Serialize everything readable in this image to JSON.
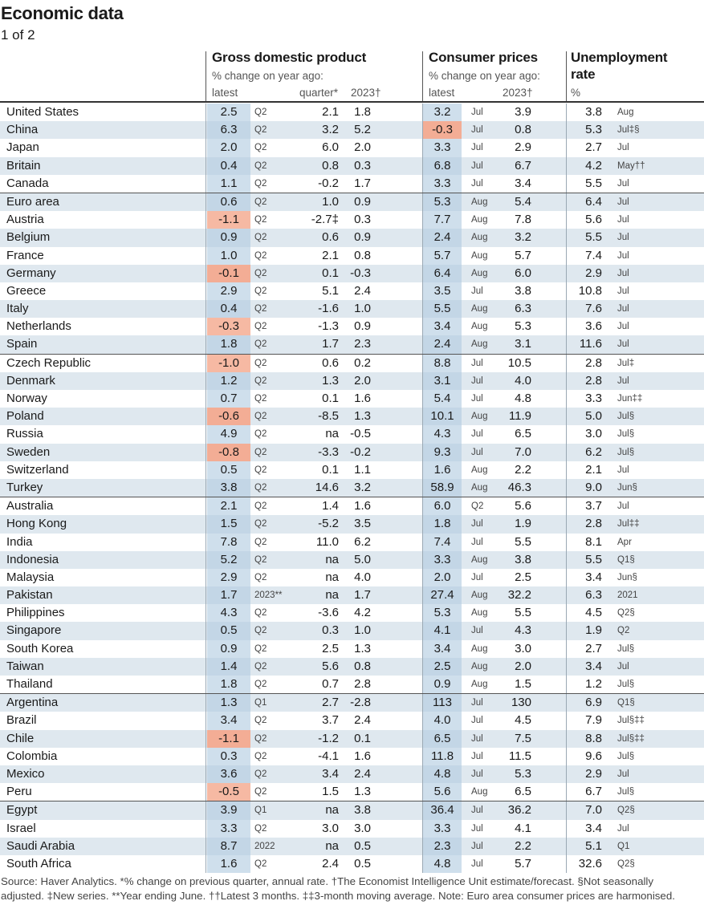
{
  "title": "Economic data",
  "subtitle": "1 of 2",
  "headers": {
    "gdp": "Gross domestic product",
    "gdp_sub": "% change on year ago:",
    "gdp_latest": "latest",
    "gdp_quarter": "quarter*",
    "gdp_2023": "2023†",
    "cpi": "Consumer prices",
    "cpi_sub": "% change on year ago:",
    "cpi_latest": "latest",
    "cpi_2023": "2023†",
    "unemp_line1": "Unemployment",
    "unemp_line2": "rate",
    "unemp_pct": "%"
  },
  "rows": [
    {
      "country": "United States",
      "gdp": "2.5",
      "gdp_period": "Q2",
      "quarter": "2.1",
      "gdp_2023": "1.8",
      "cpi": "3.2",
      "cpi_period": "Jul",
      "cpi_2023": "3.9",
      "unemp": "3.8",
      "unemp_period": "Aug"
    },
    {
      "country": "China",
      "gdp": "6.3",
      "gdp_period": "Q2",
      "quarter": "3.2",
      "gdp_2023": "5.2",
      "cpi": "-0.3",
      "cpi_period": "Jul",
      "cpi_2023": "0.8",
      "unemp": "5.3",
      "unemp_period": "Jul‡§"
    },
    {
      "country": "Japan",
      "gdp": "2.0",
      "gdp_period": "Q2",
      "quarter": "6.0",
      "gdp_2023": "2.0",
      "cpi": "3.3",
      "cpi_period": "Jul",
      "cpi_2023": "2.9",
      "unemp": "2.7",
      "unemp_period": "Jul"
    },
    {
      "country": "Britain",
      "gdp": "0.4",
      "gdp_period": "Q2",
      "quarter": "0.8",
      "gdp_2023": "0.3",
      "cpi": "6.8",
      "cpi_period": "Jul",
      "cpi_2023": "6.7",
      "unemp": "4.2",
      "unemp_period": "May††"
    },
    {
      "country": "Canada",
      "gdp": "1.1",
      "gdp_period": "Q2",
      "quarter": "-0.2",
      "gdp_2023": "1.7",
      "cpi": "3.3",
      "cpi_period": "Jul",
      "cpi_2023": "3.4",
      "unemp": "5.5",
      "unemp_period": "Jul"
    },
    {
      "country": "Euro area",
      "gdp": "0.6",
      "gdp_period": "Q2",
      "quarter": "1.0",
      "gdp_2023": "0.9",
      "cpi": "5.3",
      "cpi_period": "Aug",
      "cpi_2023": "5.4",
      "unemp": "6.4",
      "unemp_period": "Jul",
      "sep": true
    },
    {
      "country": "Austria",
      "gdp": "-1.1",
      "gdp_period": "Q2",
      "quarter": "-2.7‡",
      "gdp_2023": "0.3",
      "cpi": "7.7",
      "cpi_period": "Aug",
      "cpi_2023": "7.8",
      "unemp": "5.6",
      "unemp_period": "Jul"
    },
    {
      "country": "Belgium",
      "gdp": "0.9",
      "gdp_period": "Q2",
      "quarter": "0.6",
      "gdp_2023": "0.9",
      "cpi": "2.4",
      "cpi_period": "Aug",
      "cpi_2023": "3.2",
      "unemp": "5.5",
      "unemp_period": "Jul"
    },
    {
      "country": "France",
      "gdp": "1.0",
      "gdp_period": "Q2",
      "quarter": "2.1",
      "gdp_2023": "0.8",
      "cpi": "5.7",
      "cpi_period": "Aug",
      "cpi_2023": "5.7",
      "unemp": "7.4",
      "unemp_period": "Jul"
    },
    {
      "country": "Germany",
      "gdp": "-0.1",
      "gdp_period": "Q2",
      "quarter": "0.1",
      "gdp_2023": "-0.3",
      "cpi": "6.4",
      "cpi_period": "Aug",
      "cpi_2023": "6.0",
      "unemp": "2.9",
      "unemp_period": "Jul"
    },
    {
      "country": "Greece",
      "gdp": "2.9",
      "gdp_period": "Q2",
      "quarter": "5.1",
      "gdp_2023": "2.4",
      "cpi": "3.5",
      "cpi_period": "Jul",
      "cpi_2023": "3.8",
      "unemp": "10.8",
      "unemp_period": "Jul"
    },
    {
      "country": "Italy",
      "gdp": "0.4",
      "gdp_period": "Q2",
      "quarter": "-1.6",
      "gdp_2023": "1.0",
      "cpi": "5.5",
      "cpi_period": "Aug",
      "cpi_2023": "6.3",
      "unemp": "7.6",
      "unemp_period": "Jul"
    },
    {
      "country": "Netherlands",
      "gdp": "-0.3",
      "gdp_period": "Q2",
      "quarter": "-1.3",
      "gdp_2023": "0.9",
      "cpi": "3.4",
      "cpi_period": "Aug",
      "cpi_2023": "5.3",
      "unemp": "3.6",
      "unemp_period": "Jul"
    },
    {
      "country": "Spain",
      "gdp": "1.8",
      "gdp_period": "Q2",
      "quarter": "1.7",
      "gdp_2023": "2.3",
      "cpi": "2.4",
      "cpi_period": "Aug",
      "cpi_2023": "3.1",
      "unemp": "11.6",
      "unemp_period": "Jul"
    },
    {
      "country": "Czech Republic",
      "gdp": "-1.0",
      "gdp_period": "Q2",
      "quarter": "0.6",
      "gdp_2023": "0.2",
      "cpi": "8.8",
      "cpi_period": "Jul",
      "cpi_2023": "10.5",
      "unemp": "2.8",
      "unemp_period": "Jul‡",
      "sep": true
    },
    {
      "country": "Denmark",
      "gdp": "1.2",
      "gdp_period": "Q2",
      "quarter": "1.3",
      "gdp_2023": "2.0",
      "cpi": "3.1",
      "cpi_period": "Jul",
      "cpi_2023": "4.0",
      "unemp": "2.8",
      "unemp_period": "Jul"
    },
    {
      "country": "Norway",
      "gdp": "0.7",
      "gdp_period": "Q2",
      "quarter": "0.1",
      "gdp_2023": "1.6",
      "cpi": "5.4",
      "cpi_period": "Jul",
      "cpi_2023": "4.8",
      "unemp": "3.3",
      "unemp_period": "Jun‡‡"
    },
    {
      "country": "Poland",
      "gdp": "-0.6",
      "gdp_period": "Q2",
      "quarter": "-8.5",
      "gdp_2023": "1.3",
      "cpi": "10.1",
      "cpi_period": "Aug",
      "cpi_2023": "11.9",
      "unemp": "5.0",
      "unemp_period": "Jul§"
    },
    {
      "country": "Russia",
      "gdp": "4.9",
      "gdp_period": "Q2",
      "quarter": "na",
      "gdp_2023": "-0.5",
      "cpi": "4.3",
      "cpi_period": "Jul",
      "cpi_2023": "6.5",
      "unemp": "3.0",
      "unemp_period": "Jul§"
    },
    {
      "country": "Sweden",
      "gdp": "-0.8",
      "gdp_period": "Q2",
      "quarter": "-3.3",
      "gdp_2023": "-0.2",
      "cpi": "9.3",
      "cpi_period": "Jul",
      "cpi_2023": "7.0",
      "unemp": "6.2",
      "unemp_period": "Jul§"
    },
    {
      "country": "Switzerland",
      "gdp": "0.5",
      "gdp_period": "Q2",
      "quarter": "0.1",
      "gdp_2023": "1.1",
      "cpi": "1.6",
      "cpi_period": "Aug",
      "cpi_2023": "2.2",
      "unemp": "2.1",
      "unemp_period": "Jul"
    },
    {
      "country": "Turkey",
      "gdp": "3.8",
      "gdp_period": "Q2",
      "quarter": "14.6",
      "gdp_2023": "3.2",
      "cpi": "58.9",
      "cpi_period": "Aug",
      "cpi_2023": "46.3",
      "unemp": "9.0",
      "unemp_period": "Jun§"
    },
    {
      "country": "Australia",
      "gdp": "2.1",
      "gdp_period": "Q2",
      "quarter": "1.4",
      "gdp_2023": "1.6",
      "cpi": "6.0",
      "cpi_period": "Q2",
      "cpi_2023": "5.6",
      "unemp": "3.7",
      "unemp_period": "Jul",
      "sep": true
    },
    {
      "country": "Hong Kong",
      "gdp": "1.5",
      "gdp_period": "Q2",
      "quarter": "-5.2",
      "gdp_2023": "3.5",
      "cpi": "1.8",
      "cpi_period": "Jul",
      "cpi_2023": "1.9",
      "unemp": "2.8",
      "unemp_period": "Jul‡‡"
    },
    {
      "country": "India",
      "gdp": "7.8",
      "gdp_period": "Q2",
      "quarter": "11.0",
      "gdp_2023": "6.2",
      "cpi": "7.4",
      "cpi_period": "Jul",
      "cpi_2023": "5.5",
      "unemp": "8.1",
      "unemp_period": "Apr"
    },
    {
      "country": "Indonesia",
      "gdp": "5.2",
      "gdp_period": "Q2",
      "quarter": "na",
      "gdp_2023": "5.0",
      "cpi": "3.3",
      "cpi_period": "Aug",
      "cpi_2023": "3.8",
      "unemp": "5.5",
      "unemp_period": "Q1§"
    },
    {
      "country": "Malaysia",
      "gdp": "2.9",
      "gdp_period": "Q2",
      "quarter": "na",
      "gdp_2023": "4.0",
      "cpi": "2.0",
      "cpi_period": "Jul",
      "cpi_2023": "2.5",
      "unemp": "3.4",
      "unemp_period": "Jun§"
    },
    {
      "country": "Pakistan",
      "gdp": "1.7",
      "gdp_period": "2023**",
      "quarter": "na",
      "gdp_2023": "1.7",
      "cpi": "27.4",
      "cpi_period": "Aug",
      "cpi_2023": "32.2",
      "unemp": "6.3",
      "unemp_period": "2021"
    },
    {
      "country": "Philippines",
      "gdp": "4.3",
      "gdp_period": "Q2",
      "quarter": "-3.6",
      "gdp_2023": "4.2",
      "cpi": "5.3",
      "cpi_period": "Aug",
      "cpi_2023": "5.5",
      "unemp": "4.5",
      "unemp_period": "Q2§"
    },
    {
      "country": "Singapore",
      "gdp": "0.5",
      "gdp_period": "Q2",
      "quarter": "0.3",
      "gdp_2023": "1.0",
      "cpi": "4.1",
      "cpi_period": "Jul",
      "cpi_2023": "4.3",
      "unemp": "1.9",
      "unemp_period": "Q2"
    },
    {
      "country": "South Korea",
      "gdp": "0.9",
      "gdp_period": "Q2",
      "quarter": "2.5",
      "gdp_2023": "1.3",
      "cpi": "3.4",
      "cpi_period": "Aug",
      "cpi_2023": "3.0",
      "unemp": "2.7",
      "unemp_period": "Jul§"
    },
    {
      "country": "Taiwan",
      "gdp": "1.4",
      "gdp_period": "Q2",
      "quarter": "5.6",
      "gdp_2023": "0.8",
      "cpi": "2.5",
      "cpi_period": "Aug",
      "cpi_2023": "2.0",
      "unemp": "3.4",
      "unemp_period": "Jul"
    },
    {
      "country": "Thailand",
      "gdp": "1.8",
      "gdp_period": "Q2",
      "quarter": "0.7",
      "gdp_2023": "2.8",
      "cpi": "0.9",
      "cpi_period": "Aug",
      "cpi_2023": "1.5",
      "unemp": "1.2",
      "unemp_period": "Jul§"
    },
    {
      "country": "Argentina",
      "gdp": "1.3",
      "gdp_period": "Q1",
      "quarter": "2.7",
      "gdp_2023": "-2.8",
      "cpi": "113",
      "cpi_period": "Jul",
      "cpi_2023": "130",
      "unemp": "6.9",
      "unemp_period": "Q1§",
      "sep": true
    },
    {
      "country": "Brazil",
      "gdp": "3.4",
      "gdp_period": "Q2",
      "quarter": "3.7",
      "gdp_2023": "2.4",
      "cpi": "4.0",
      "cpi_period": "Jul",
      "cpi_2023": "4.5",
      "unemp": "7.9",
      "unemp_period": "Jul§‡‡"
    },
    {
      "country": "Chile",
      "gdp": "-1.1",
      "gdp_period": "Q2",
      "quarter": "-1.2",
      "gdp_2023": "0.1",
      "cpi": "6.5",
      "cpi_period": "Jul",
      "cpi_2023": "7.5",
      "unemp": "8.8",
      "unemp_period": "Jul§‡‡"
    },
    {
      "country": "Colombia",
      "gdp": "0.3",
      "gdp_period": "Q2",
      "quarter": "-4.1",
      "gdp_2023": "1.6",
      "cpi": "11.8",
      "cpi_period": "Jul",
      "cpi_2023": "11.5",
      "unemp": "9.6",
      "unemp_period": "Jul§"
    },
    {
      "country": "Mexico",
      "gdp": "3.6",
      "gdp_period": "Q2",
      "quarter": "3.4",
      "gdp_2023": "2.4",
      "cpi": "4.8",
      "cpi_period": "Jul",
      "cpi_2023": "5.3",
      "unemp": "2.9",
      "unemp_period": "Jul"
    },
    {
      "country": "Peru",
      "gdp": "-0.5",
      "gdp_period": "Q2",
      "quarter": "1.5",
      "gdp_2023": "1.3",
      "cpi": "5.6",
      "cpi_period": "Aug",
      "cpi_2023": "6.5",
      "unemp": "6.7",
      "unemp_period": "Jul§"
    },
    {
      "country": "Egypt",
      "gdp": "3.9",
      "gdp_period": "Q1",
      "quarter": "na",
      "gdp_2023": "3.8",
      "cpi": "36.4",
      "cpi_period": "Jul",
      "cpi_2023": "36.2",
      "unemp": "7.0",
      "unemp_period": "Q2§",
      "sep": true
    },
    {
      "country": "Israel",
      "gdp": "3.3",
      "gdp_period": "Q2",
      "quarter": "3.0",
      "gdp_2023": "3.0",
      "cpi": "3.3",
      "cpi_period": "Jul",
      "cpi_2023": "4.1",
      "unemp": "3.4",
      "unemp_period": "Jul"
    },
    {
      "country": "Saudi Arabia",
      "gdp": "8.7",
      "gdp_period": "2022",
      "quarter": "na",
      "gdp_2023": "0.5",
      "cpi": "2.3",
      "cpi_period": "Jul",
      "cpi_2023": "2.2",
      "unemp": "5.1",
      "unemp_period": "Q1"
    },
    {
      "country": "South Africa",
      "gdp": "1.6",
      "gdp_period": "Q2",
      "quarter": "2.4",
      "gdp_2023": "0.5",
      "cpi": "4.8",
      "cpi_period": "Jul",
      "cpi_2023": "5.7",
      "unemp": "32.6",
      "unemp_period": "Q2§"
    }
  ],
  "footer": {
    "line1": "Source: Haver Analytics.  *% change on previous quarter, annual rate. †The Economist Intelligence Unit estimate/forecast. §Not seasonally",
    "line2": "adjusted. ‡New series. **Year ending June. ††Latest 3 months. ‡‡3-month moving average. Note: Euro area consumer prices are harmonised."
  }
}
